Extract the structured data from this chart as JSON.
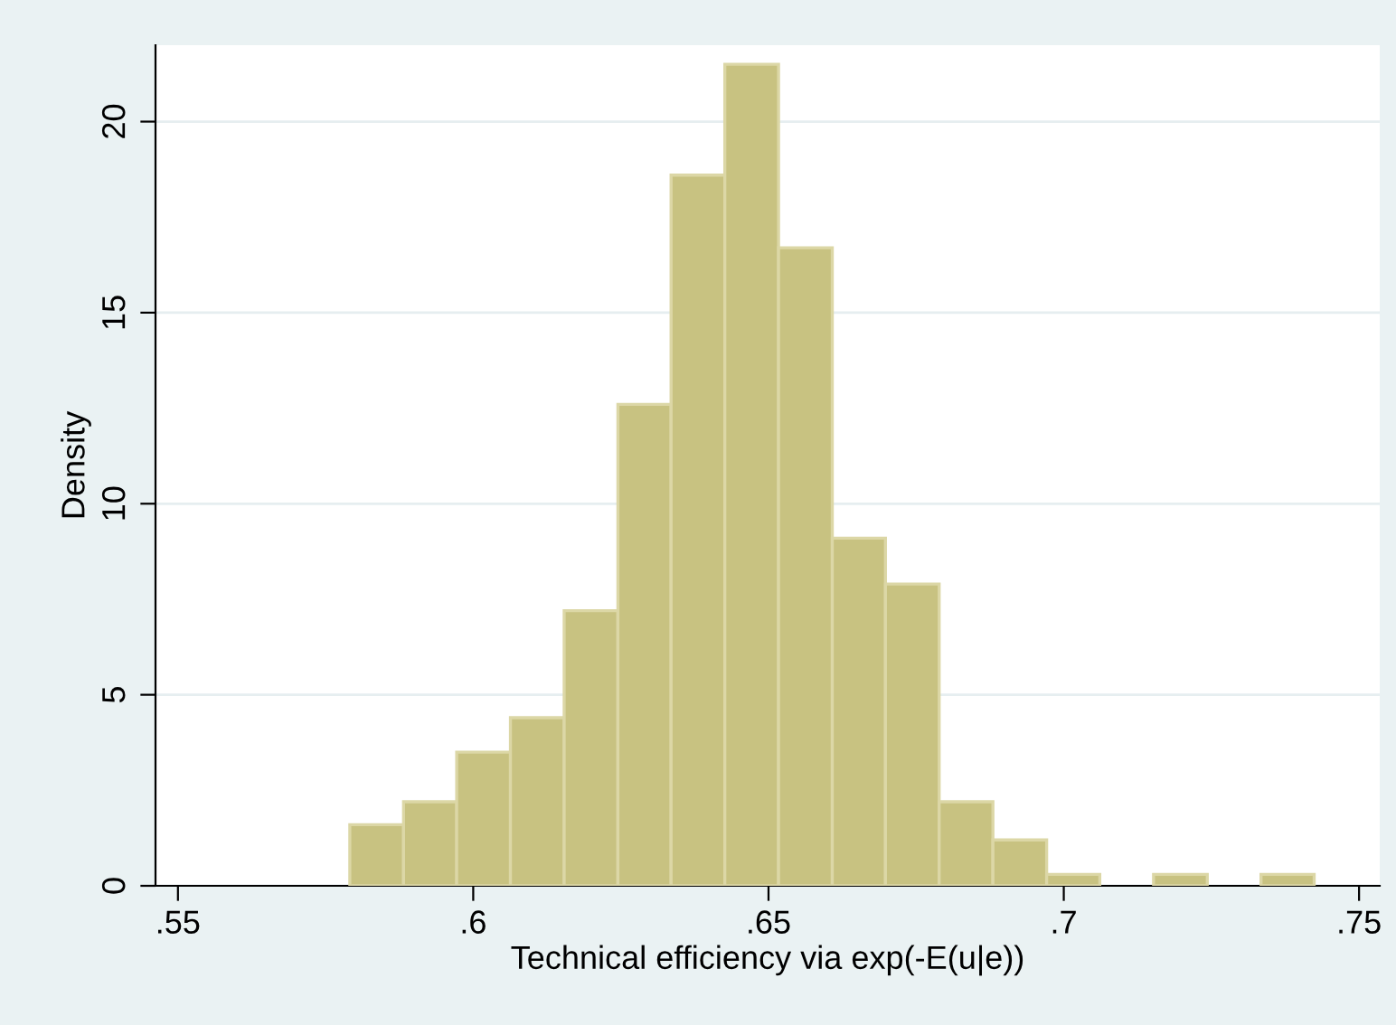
{
  "chart_data": {
    "type": "histogram",
    "xlabel": "Technical efficiency via exp(-E(u|e))",
    "ylabel": "Density",
    "bins": [
      0.5791,
      0.5882,
      0.5972,
      0.6063,
      0.6154,
      0.6245,
      0.6335,
      0.6426,
      0.6517,
      0.6608,
      0.6698,
      0.6789,
      0.688,
      0.6971,
      0.7061,
      0.7152,
      0.7243,
      0.7334,
      0.7424
    ],
    "values": [
      1.6,
      2.2,
      3.5,
      4.4,
      7.2,
      12.6,
      18.6,
      21.5,
      16.7,
      9.1,
      7.9,
      2.2,
      1.2,
      0.3,
      0,
      0.3,
      0,
      0.3
    ],
    "color": "#c8c281",
    "xlim": [
      0.5462,
      0.7535
    ],
    "ylim": [
      0,
      22
    ],
    "xticks": [
      {
        "value": 0.55,
        "label": ".55"
      },
      {
        "value": 0.6,
        "label": ".6"
      },
      {
        "value": 0.65,
        "label": ".65"
      },
      {
        "value": 0.7,
        "label": ".7"
      },
      {
        "value": 0.75,
        "label": ".75"
      }
    ],
    "yticks": [
      0,
      5,
      10,
      15,
      20
    ],
    "grid": "y"
  }
}
